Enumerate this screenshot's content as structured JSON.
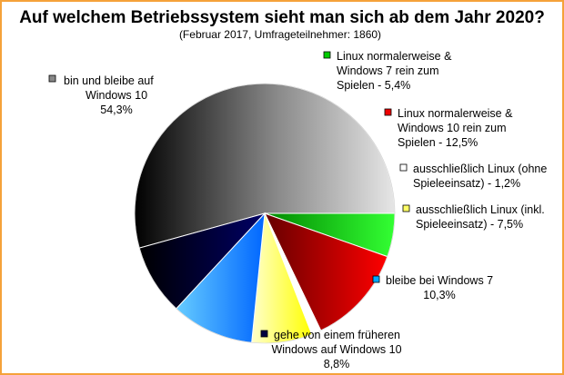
{
  "chart_data": {
    "type": "pie",
    "title": "Auf welchem Betriebssystem sieht man sich ab dem Jahr 2020?",
    "subtitle": "(Februar 2017, Umfrageteilnehmer: 1860)",
    "slices": [
      {
        "name": "bin und bleibe auf Windows 10",
        "value": 54.3,
        "value_label": "54,3%",
        "color": "#9a9a9a",
        "gradient": true,
        "label_lines": [
          "bin und bleibe auf",
          "Windows 10",
          "54,3%"
        ]
      },
      {
        "name": "Linux normalerweise & Windows 7 rein zum Spielen",
        "value": 5.4,
        "value_label": "5,4%",
        "color": "#00cc00",
        "label_lines": [
          "Linux normalerweise &",
          "Windows 7 rein zum",
          "Spielen - 5,4%"
        ]
      },
      {
        "name": "Linux normalerweise & Windows 10 rein zum Spielen",
        "value": 12.5,
        "value_label": "12,5%",
        "color": "#ee0000",
        "label_lines": [
          "Linux normalerweise &",
          "Windows 10 rein zum",
          "Spielen - 12,5%"
        ]
      },
      {
        "name": "ausschließlich Linux (ohne Spieleeinsatz)",
        "value": 1.2,
        "value_label": "1,2%",
        "color": "#ffffff",
        "label_lines": [
          "ausschließlich Linux (ohne",
          "Spieleeinsatz) - 1,2%"
        ]
      },
      {
        "name": "ausschließlich Linux (inkl. Spieleeinsatz)",
        "value": 7.5,
        "value_label": "7,5%",
        "color": "#ffff66",
        "label_lines": [
          "ausschließlich Linux (inkl.",
          "Spieleeinsatz) - 7,5%"
        ]
      },
      {
        "name": "bleibe bei Windows 7",
        "value": 10.3,
        "value_label": "10,3%",
        "color": "#00aaff",
        "label_lines": [
          "bleibe bei Windows 7",
          "10,3%"
        ]
      },
      {
        "name": "gehe von einem früheren Windows auf Windows 10",
        "value": 8.8,
        "value_label": "8,8%",
        "color": "#000040",
        "label_lines": [
          "gehe von einem früheren",
          "Windows auf Windows 10",
          "8,8%"
        ]
      }
    ]
  }
}
